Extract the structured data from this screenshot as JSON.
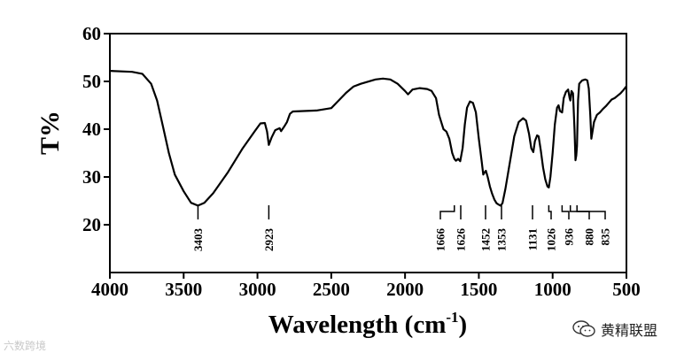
{
  "chart_data": {
    "type": "line",
    "xlabel": "Wavelength (cm",
    "xlabel_sup": "-1",
    "xlabel_tail": ")",
    "ylabel": "T%",
    "xlim": [
      4000,
      500
    ],
    "ylim": [
      10,
      60
    ],
    "x_ticks": [
      "4000",
      "3500",
      "3000",
      "2500",
      "2000",
      "1500",
      "1000",
      "500"
    ],
    "y_ticks": [
      "60",
      "50",
      "40",
      "30",
      "20"
    ],
    "x_tick_values": [
      4000,
      3500,
      3000,
      2500,
      2000,
      1500,
      1000,
      500
    ],
    "y_tick_values": [
      60,
      50,
      40,
      30,
      20
    ],
    "series": [
      {
        "points": [
          [
            4000,
            52.2
          ],
          [
            3850,
            52.0
          ],
          [
            3780,
            51.6
          ],
          [
            3720,
            49.5
          ],
          [
            3680,
            46.0
          ],
          [
            3640,
            40.5
          ],
          [
            3600,
            35.0
          ],
          [
            3560,
            30.5
          ],
          [
            3500,
            27.0
          ],
          [
            3450,
            24.6
          ],
          [
            3403,
            24.0
          ],
          [
            3360,
            24.6
          ],
          [
            3300,
            26.6
          ],
          [
            3200,
            31.0
          ],
          [
            3100,
            36.0
          ],
          [
            3020,
            39.5
          ],
          [
            2980,
            41.2
          ],
          [
            2950,
            41.3
          ],
          [
            2935,
            39.5
          ],
          [
            2923,
            36.7
          ],
          [
            2905,
            38.2
          ],
          [
            2880,
            39.8
          ],
          [
            2850,
            40.2
          ],
          [
            2840,
            39.6
          ],
          [
            2820,
            40.5
          ],
          [
            2800,
            41.5
          ],
          [
            2780,
            43.2
          ],
          [
            2760,
            43.7
          ],
          [
            2600,
            43.9
          ],
          [
            2500,
            44.4
          ],
          [
            2450,
            46.0
          ],
          [
            2400,
            47.6
          ],
          [
            2350,
            48.9
          ],
          [
            2300,
            49.5
          ],
          [
            2200,
            50.4
          ],
          [
            2150,
            50.6
          ],
          [
            2100,
            50.4
          ],
          [
            2050,
            49.5
          ],
          [
            2000,
            48.0
          ],
          [
            1980,
            47.3
          ],
          [
            1950,
            48.3
          ],
          [
            1900,
            48.6
          ],
          [
            1850,
            48.4
          ],
          [
            1820,
            48.0
          ],
          [
            1790,
            46.5
          ],
          [
            1770,
            43.0
          ],
          [
            1755,
            41.5
          ],
          [
            1740,
            40.0
          ],
          [
            1720,
            39.5
          ],
          [
            1700,
            38.0
          ],
          [
            1680,
            35.0
          ],
          [
            1666,
            33.8
          ],
          [
            1655,
            33.4
          ],
          [
            1640,
            33.8
          ],
          [
            1626,
            33.3
          ],
          [
            1610,
            36.0
          ],
          [
            1595,
            41.0
          ],
          [
            1580,
            44.5
          ],
          [
            1560,
            45.8
          ],
          [
            1540,
            45.5
          ],
          [
            1520,
            43.5
          ],
          [
            1500,
            38.0
          ],
          [
            1480,
            33.0
          ],
          [
            1470,
            30.5
          ],
          [
            1460,
            31.0
          ],
          [
            1452,
            31.3
          ],
          [
            1440,
            30.0
          ],
          [
            1425,
            28.0
          ],
          [
            1410,
            26.5
          ],
          [
            1395,
            25.3
          ],
          [
            1380,
            24.5
          ],
          [
            1365,
            24.2
          ],
          [
            1353,
            24.0
          ],
          [
            1340,
            24.5
          ],
          [
            1320,
            27.5
          ],
          [
            1290,
            33.0
          ],
          [
            1260,
            38.5
          ],
          [
            1230,
            41.5
          ],
          [
            1200,
            42.3
          ],
          [
            1180,
            41.8
          ],
          [
            1160,
            39.0
          ],
          [
            1145,
            36.0
          ],
          [
            1131,
            35.2
          ],
          [
            1120,
            37.5
          ],
          [
            1105,
            38.7
          ],
          [
            1095,
            38.5
          ],
          [
            1080,
            35.5
          ],
          [
            1065,
            32.0
          ],
          [
            1050,
            29.5
          ],
          [
            1035,
            28.0
          ],
          [
            1026,
            27.8
          ],
          [
            1015,
            30.0
          ],
          [
            1000,
            35.0
          ],
          [
            985,
            41.0
          ],
          [
            970,
            44.5
          ],
          [
            960,
            45.0
          ],
          [
            950,
            43.8
          ],
          [
            936,
            43.5
          ],
          [
            925,
            46.5
          ],
          [
            910,
            47.8
          ],
          [
            895,
            48.3
          ],
          [
            885,
            46.5
          ],
          [
            880,
            46.0
          ],
          [
            872,
            48.0
          ],
          [
            862,
            47.5
          ],
          [
            852,
            40.0
          ],
          [
            845,
            33.5
          ],
          [
            840,
            34.5
          ],
          [
            835,
            36.5
          ],
          [
            828,
            46.0
          ],
          [
            820,
            49.5
          ],
          [
            800,
            50.2
          ],
          [
            780,
            50.4
          ],
          [
            765,
            50.2
          ],
          [
            755,
            48.5
          ],
          [
            745,
            43.0
          ],
          [
            738,
            38.0
          ],
          [
            730,
            39.5
          ],
          [
            720,
            41.5
          ],
          [
            700,
            43.0
          ],
          [
            680,
            43.5
          ],
          [
            660,
            44.2
          ],
          [
            640,
            44.8
          ],
          [
            620,
            45.5
          ],
          [
            600,
            46.2
          ],
          [
            580,
            46.5
          ],
          [
            560,
            47.0
          ],
          [
            540,
            47.5
          ],
          [
            520,
            48.2
          ],
          [
            500,
            49.0
          ]
        ]
      }
    ],
    "peak_labels": [
      {
        "text": "3403",
        "x": 3403
      },
      {
        "text": "2923",
        "x": 2923
      },
      {
        "text": "1666",
        "x": 1666
      },
      {
        "text": "1626",
        "x": 1626
      },
      {
        "text": "1452",
        "x": 1452
      },
      {
        "text": "1353",
        "x": 1353
      },
      {
        "text": "1131",
        "x": 1131
      },
      {
        "text": "1026",
        "x": 1026
      },
      {
        "text": "936",
        "x": 936
      },
      {
        "text": "880",
        "x": 880
      },
      {
        "text": "835",
        "x": 835
      }
    ],
    "grid": false
  },
  "watermarks": {
    "left": "六数跨境",
    "right": "黄精联盟",
    "right_icon": "wechat-icon"
  }
}
